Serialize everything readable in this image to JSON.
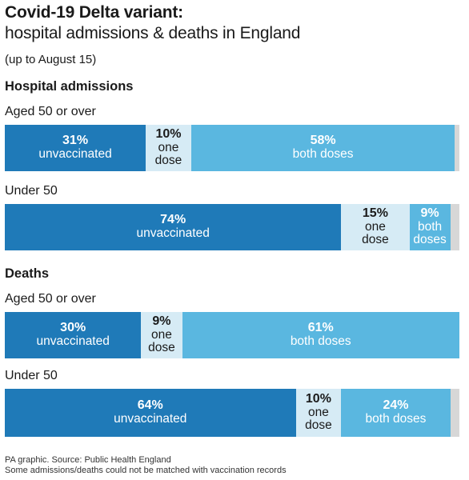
{
  "header": {
    "title": "Covid-19 Delta variant:",
    "subtitle": "hospital admissions & deaths in England",
    "note": "(up to August 15)"
  },
  "colors": {
    "unvaccinated": "#1f7ab8",
    "one_dose": "#d6ebf5",
    "both_doses": "#5ab7e0",
    "unmatched": "#d7d7d7"
  },
  "chart_data": [
    {
      "type": "bar",
      "section": "Hospital admissions",
      "groups": [
        {
          "label": "Aged 50 or over",
          "segments": [
            {
              "pct": "31%",
              "value": 31,
              "label": "unvaccinated",
              "kind": "unvac"
            },
            {
              "pct": "10%",
              "value": 10,
              "label": "one dose",
              "kind": "one"
            },
            {
              "pct": "58%",
              "value": 58,
              "label": "both doses",
              "kind": "both"
            }
          ]
        },
        {
          "label": "Under 50",
          "segments": [
            {
              "pct": "74%",
              "value": 74,
              "label": "unvaccinated",
              "kind": "unvac"
            },
            {
              "pct": "15%",
              "value": 15,
              "label": "one dose",
              "kind": "one"
            },
            {
              "pct": "9%",
              "value": 9,
              "label": "both doses",
              "kind": "both"
            }
          ]
        }
      ]
    },
    {
      "type": "bar",
      "section": "Deaths",
      "groups": [
        {
          "label": "Aged 50 or over",
          "segments": [
            {
              "pct": "30%",
              "value": 30,
              "label": "unvaccinated",
              "kind": "unvac"
            },
            {
              "pct": "9%",
              "value": 9,
              "label": "one dose",
              "kind": "one"
            },
            {
              "pct": "61%",
              "value": 61,
              "label": "both doses",
              "kind": "both"
            }
          ]
        },
        {
          "label": "Under 50",
          "segments": [
            {
              "pct": "64%",
              "value": 64,
              "label": "unvaccinated",
              "kind": "unvac"
            },
            {
              "pct": "10%",
              "value": 10,
              "label": "one dose",
              "kind": "one"
            },
            {
              "pct": "24%",
              "value": 24,
              "label": "both doses",
              "kind": "both"
            }
          ]
        }
      ]
    }
  ],
  "footer": {
    "source": "PA graphic. Source: Public Health England",
    "note": "Some admissions/deaths could not be matched with vaccination records"
  }
}
